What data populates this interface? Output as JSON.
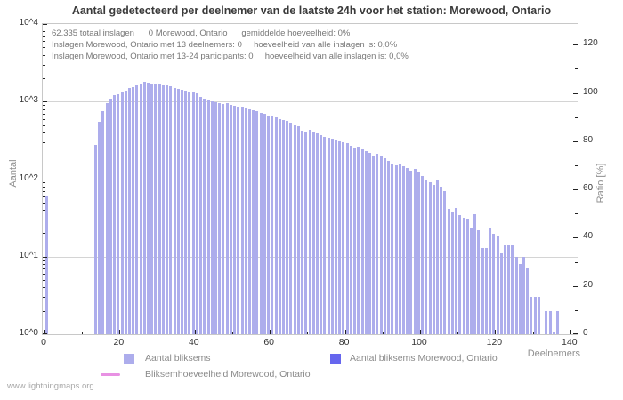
{
  "title": "Aantal gedetecteerd per deelnemer van de laatste 24h voor het station: Morewood, Ontario",
  "annotation": {
    "line1": "62.335 totaal inslagen      0 Morewood, Ontario      gemiddelde hoeveelheid: 0%",
    "line2": "Inslagen Morewood, Ontario met 13 deelnemers: 0     hoeveelheid van alle inslagen is: 0,0%",
    "line3": "Inslagen Morewood, Ontario met 13-24 participants: 0     hoeveelheid van alle inslagen is: 0,0%"
  },
  "footer": {
    "link": "www.lightningmaps.org"
  },
  "legend": {
    "items": [
      {
        "label": "Aantal bliksems",
        "swatch": "square",
        "color": "#adadec"
      },
      {
        "label": "Aantal bliksems Morewood, Ontario",
        "swatch": "square",
        "color": "#6666ee"
      },
      {
        "label": "Bliksemhoeveelheid Morewood, Ontario",
        "swatch": "line",
        "color": "#e891e3"
      }
    ]
  },
  "chart_data": {
    "type": "bar",
    "title": "Aantal gedetecteerd per deelnemer van de laatste 24h voor het station: Morewood, Ontario",
    "xlabel": "Deelnemers",
    "ylabel_left": "Aantal",
    "ylabel_right": "Ratio [%]",
    "x_note": "histogram: values[i] = number of lightning strikes detected by i participants",
    "x_range": [
      0,
      142
    ],
    "x_major_ticks": [
      0,
      20,
      40,
      60,
      80,
      100,
      120,
      140
    ],
    "x_minor_ticks": [
      10,
      30,
      50,
      70,
      90,
      110,
      130
    ],
    "left_axis": {
      "scale": "log10",
      "range": [
        1,
        10000
      ],
      "tick_labels": [
        "10^0",
        "10^1",
        "10^2",
        "10^3",
        "10^4"
      ],
      "grid_decades": [
        1,
        2,
        3
      ]
    },
    "right_axis": {
      "scale": "linear",
      "range": [
        0,
        128.6
      ],
      "major_ticks": [
        0,
        20,
        40,
        60,
        80,
        100,
        120
      ],
      "minor_ticks": [
        10,
        30,
        50,
        70,
        90,
        110
      ]
    },
    "series": [
      {
        "name": "Aantal bliksems",
        "color": "#adadec",
        "values": [
          60,
          0,
          0,
          0,
          0,
          0,
          0,
          0,
          0,
          0,
          0,
          0,
          0,
          275,
          550,
          745,
          950,
          1100,
          1200,
          1260,
          1320,
          1400,
          1480,
          1540,
          1620,
          1700,
          1800,
          1760,
          1700,
          1650,
          1690,
          1640,
          1600,
          1560,
          1500,
          1460,
          1420,
          1380,
          1340,
          1300,
          1270,
          1160,
          1100,
          1060,
          1010,
          980,
          950,
          920,
          950,
          900,
          880,
          850,
          870,
          820,
          800,
          780,
          750,
          720,
          690,
          660,
          640,
          620,
          600,
          580,
          560,
          540,
          500,
          480,
          420,
          400,
          430,
          410,
          390,
          370,
          355,
          340,
          330,
          320,
          310,
          300,
          290,
          270,
          255,
          260,
          245,
          230,
          220,
          200,
          210,
          195,
          185,
          170,
          160,
          150,
          155,
          145,
          140,
          130,
          135,
          125,
          110,
          100,
          92,
          85,
          95,
          80,
          70,
          41,
          37,
          42,
          34,
          32,
          31,
          23,
          35,
          22,
          13,
          13,
          23,
          20,
          18,
          11,
          14,
          14,
          14,
          10,
          8,
          10,
          7,
          3,
          3,
          3,
          0,
          2,
          2,
          1,
          2,
          0,
          0,
          0
        ]
      },
      {
        "name": "Aantal bliksems Morewood, Ontario",
        "color": "#6666ee",
        "values": [],
        "note": "no visible bars (station count is 0 per annotation)"
      },
      {
        "name": "Bliksemhoeveelheid Morewood, Ontario",
        "type": "line",
        "color": "#e891e3",
        "values": [],
        "note": "ratio line not visible (0%)"
      }
    ],
    "totals": {
      "total_strikes_label": "62.335 totaal inslagen",
      "station_strikes": 0,
      "average_ratio": "0%"
    },
    "legend_position": "bottom",
    "grid": "horizontal-only"
  }
}
